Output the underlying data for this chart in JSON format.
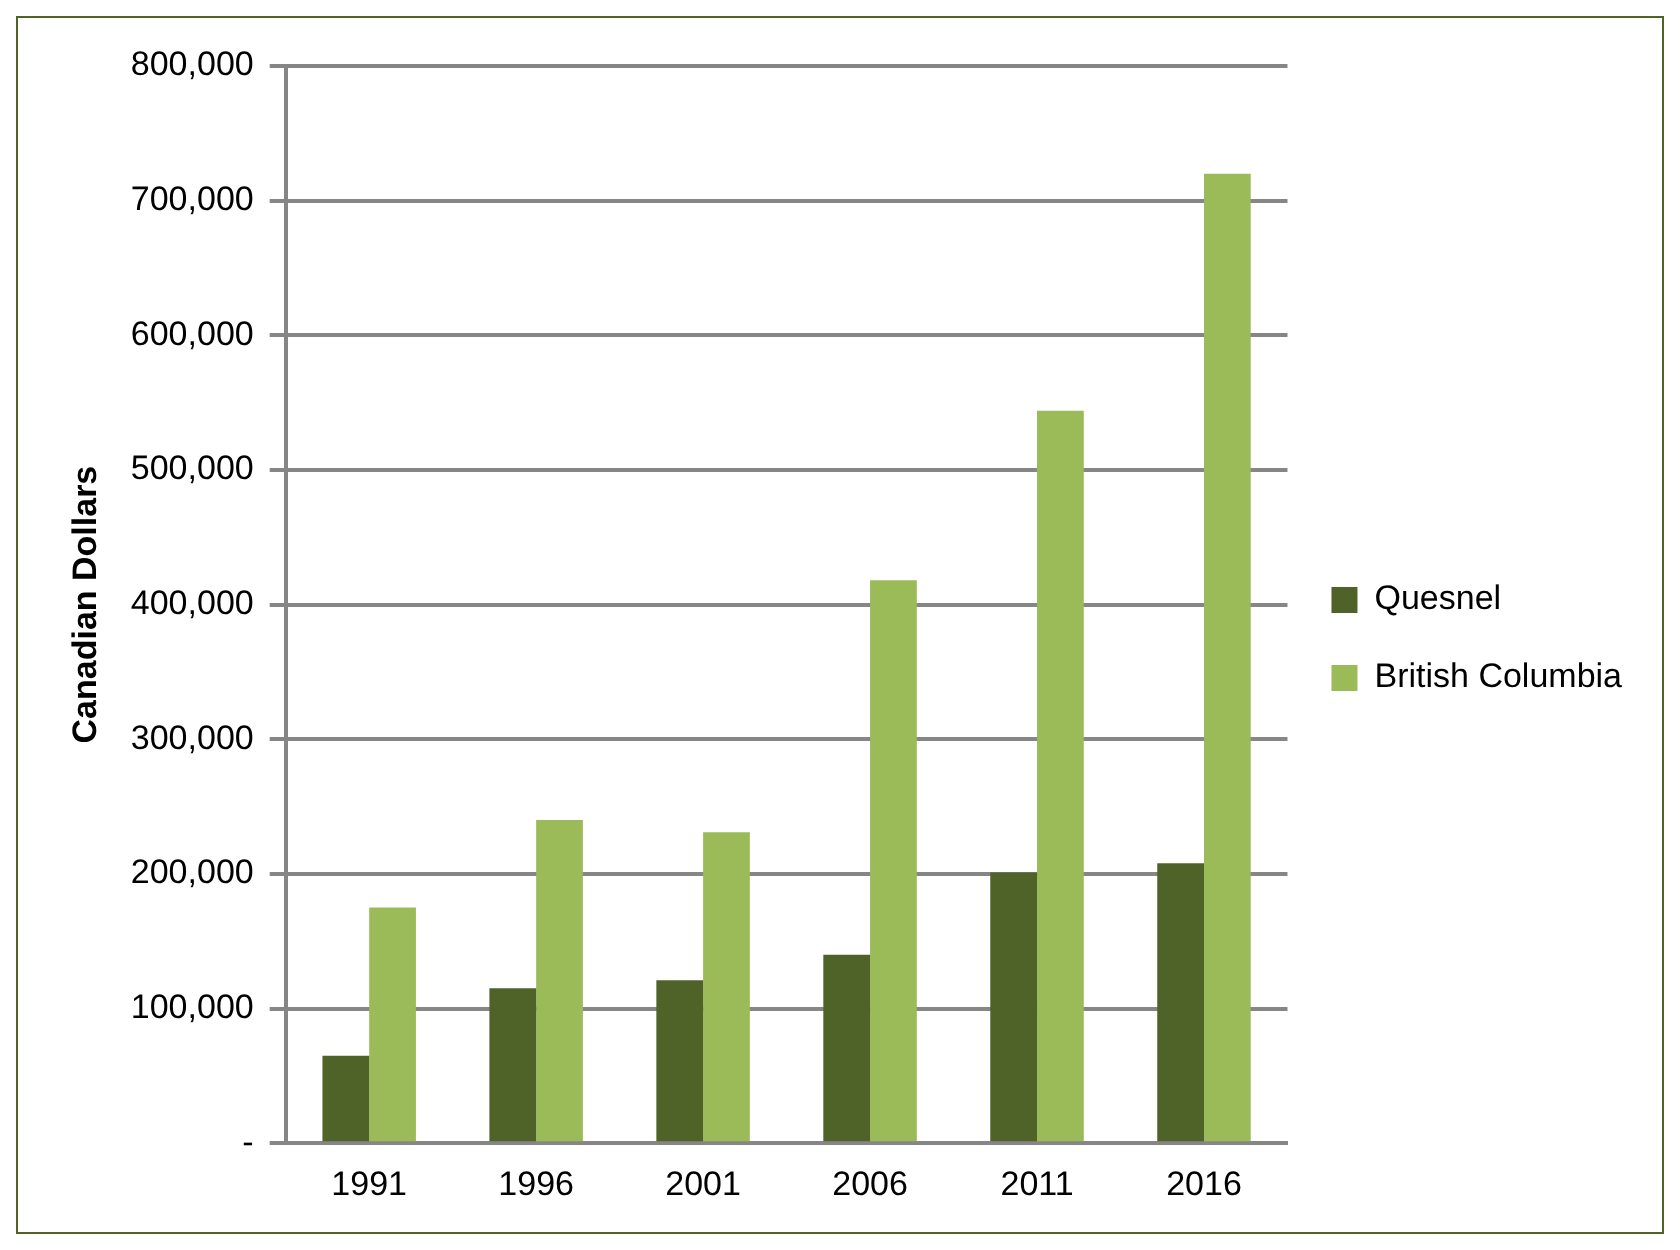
{
  "chart_data": {
    "type": "bar",
    "ylabel": "Canadian Dollars",
    "categories": [
      "1991",
      "1996",
      "2001",
      "2006",
      "2011",
      "2016"
    ],
    "series": [
      {
        "name": "Quesnel",
        "color": "#4f6228",
        "values": [
          65000,
          115000,
          121000,
          140000,
          201000,
          208000
        ]
      },
      {
        "name": "British Columbia",
        "color": "#9bbb59",
        "values": [
          175000,
          240000,
          231000,
          418000,
          544000,
          720000
        ]
      }
    ],
    "ylim": [
      0,
      800000
    ],
    "yticks": [
      {
        "value": 0,
        "label": "-"
      },
      {
        "value": 100000,
        "label": "100,000"
      },
      {
        "value": 200000,
        "label": "200,000"
      },
      {
        "value": 300000,
        "label": "300,000"
      },
      {
        "value": 400000,
        "label": "400,000"
      },
      {
        "value": 500000,
        "label": "500,000"
      },
      {
        "value": 600000,
        "label": "600,000"
      },
      {
        "value": 700000,
        "label": "700,000"
      },
      {
        "value": 800000,
        "label": "800,000"
      }
    ],
    "grid": "y",
    "legend": "right"
  }
}
